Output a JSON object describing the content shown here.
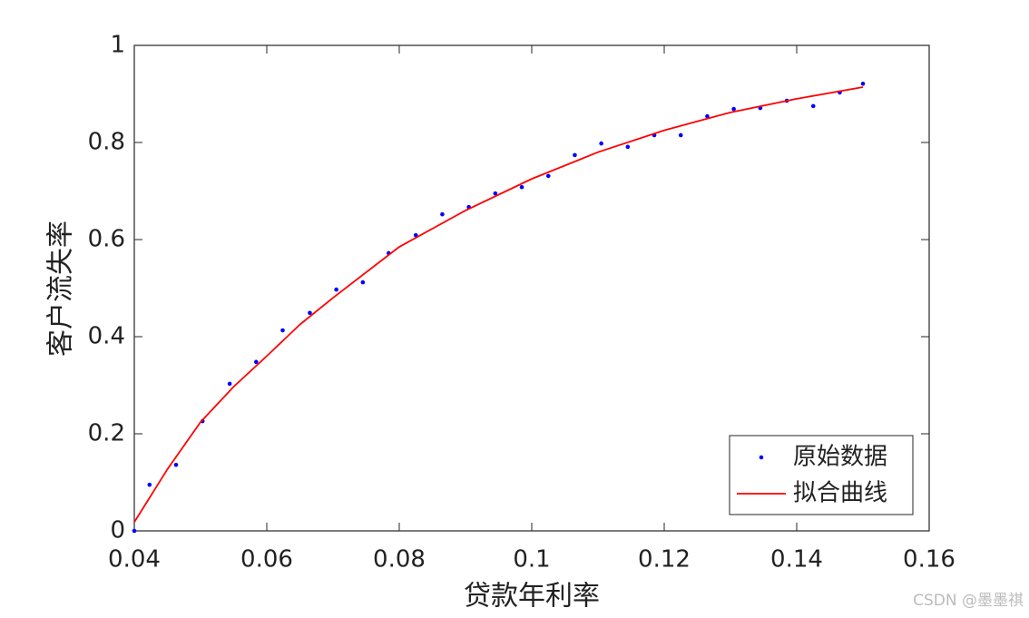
{
  "chart_data": {
    "type": "line",
    "xlabel": "贷款年利率",
    "ylabel": "客户流失率",
    "xlim": [
      0.04,
      0.16
    ],
    "xticks": [
      0.04,
      0.06,
      0.08,
      0.1,
      0.12,
      0.14,
      0.16
    ],
    "ylim": [
      0,
      1
    ],
    "yticks": [
      0,
      0.2,
      0.4,
      0.6,
      0.8,
      1
    ],
    "legend": "lower right",
    "watermark": "CSDN @墨墨祺",
    "series": [
      {
        "name": "原始数据",
        "type": "scatter",
        "color": "#0000ff",
        "x": [
          0.04,
          0.0423,
          0.0463,
          0.0503,
          0.0544,
          0.0584,
          0.0624,
          0.0665,
          0.0705,
          0.0745,
          0.0784,
          0.0825,
          0.0865,
          0.0905,
          0.0945,
          0.0985,
          0.1025,
          0.1065,
          0.1105,
          0.1145,
          0.1185,
          0.1225,
          0.1265,
          0.1305,
          0.1345,
          0.1385,
          0.1425,
          0.1465,
          0.15
        ],
        "values": [
          0,
          0.095,
          0.136,
          0.226,
          0.303,
          0.348,
          0.413,
          0.449,
          0.497,
          0.512,
          0.572,
          0.609,
          0.652,
          0.667,
          0.695,
          0.708,
          0.731,
          0.774,
          0.798,
          0.791,
          0.815,
          0.815,
          0.854,
          0.869,
          0.871,
          0.886,
          0.875,
          0.903,
          0.921
        ]
      },
      {
        "name": "拟合曲线",
        "type": "line",
        "color": "#ff0000",
        "x": [
          0.04,
          0.045,
          0.05,
          0.055,
          0.06,
          0.065,
          0.07,
          0.08,
          0.09,
          0.1,
          0.11,
          0.12,
          0.13,
          0.14,
          0.15
        ],
        "values": [
          0.018,
          0.127,
          0.224,
          0.297,
          0.36,
          0.425,
          0.48,
          0.585,
          0.66,
          0.725,
          0.78,
          0.825,
          0.862,
          0.89,
          0.914
        ]
      }
    ]
  }
}
